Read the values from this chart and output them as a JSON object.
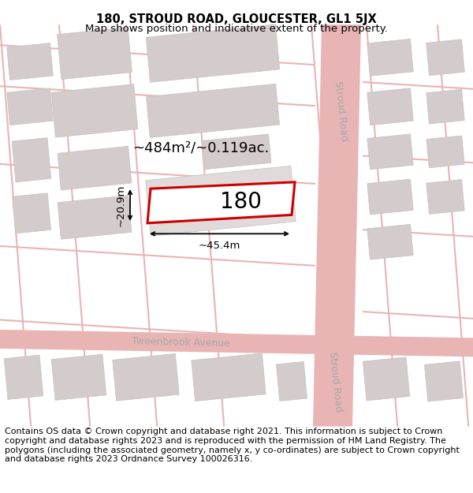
{
  "title_line1": "180, STROUD ROAD, GLOUCESTER, GL1 5JX",
  "title_line2": "Map shows position and indicative extent of the property.",
  "footer_text": "Contains OS data © Crown copyright and database right 2021. This information is subject to Crown copyright and database rights 2023 and is reproduced with the permission of HM Land Registry. The polygons (including the associated geometry, namely x, y co-ordinates) are subject to Crown copyright and database rights 2023 Ordnance Survey 100026316.",
  "map_bg": "#f7f2f2",
  "road_color": "#e8b4b4",
  "block_color": "#d4cccc",
  "block_outline": "#c8c0c0",
  "road_label_color": "#aaaaaa",
  "property_label": "180",
  "area_label": "~484m²/~0.119ac.",
  "width_label": "~45.4m",
  "height_label": "~20.9m",
  "property_red": "#cc0000",
  "road_label1": "Stroud Road",
  "road_label2": "Stroud Road",
  "road_label3": "Tweenbrook Avenue",
  "title_fontsize": 10.5,
  "subtitle_fontsize": 9.5,
  "footer_fontsize": 8,
  "property_fontsize": 20,
  "area_fontsize": 13,
  "dim_fontsize": 9.5,
  "road_label_fontsize": 9
}
